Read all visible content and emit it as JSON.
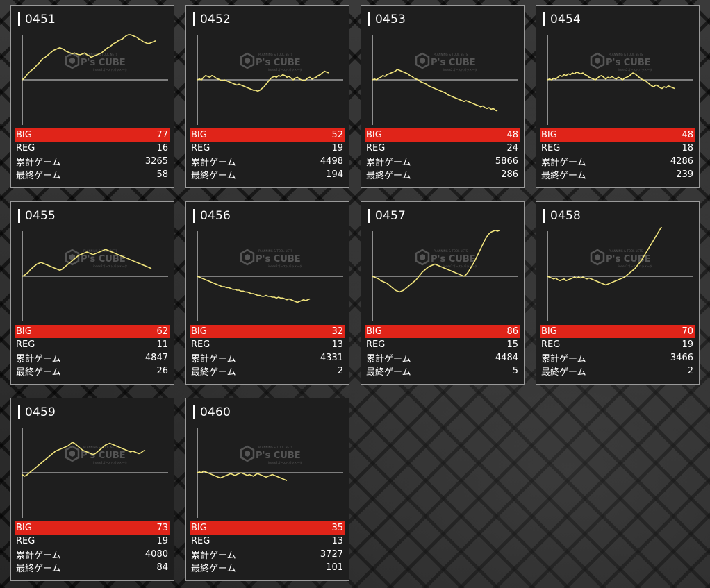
{
  "machines": [
    {
      "id": "0451",
      "big": "77",
      "reg": "16",
      "total": "3265",
      "last": "58",
      "series": [
        0,
        2,
        5,
        8,
        10,
        12,
        14,
        17,
        19,
        22,
        25,
        26,
        28,
        30,
        32,
        34,
        35,
        36,
        37,
        36,
        35,
        33,
        32,
        31,
        30,
        31,
        30,
        29,
        29,
        30,
        31,
        29,
        28,
        26,
        27,
        28,
        29,
        30,
        31,
        33,
        35,
        37,
        38,
        40,
        42,
        43,
        45,
        46,
        47,
        49,
        51,
        52,
        52,
        51,
        50,
        49,
        47,
        46,
        44,
        43,
        42,
        42,
        43,
        44,
        45
      ]
    },
    {
      "id": "0452",
      "big": "52",
      "reg": "19",
      "total": "4498",
      "last": "194",
      "series": [
        0,
        1,
        0,
        3,
        5,
        4,
        3,
        5,
        4,
        2,
        1,
        0,
        -1,
        0,
        -1,
        -2,
        -3,
        -4,
        -5,
        -6,
        -5,
        -6,
        -7,
        -8,
        -9,
        -10,
        -11,
        -12,
        -12,
        -13,
        -12,
        -10,
        -8,
        -5,
        -2,
        1,
        3,
        4,
        3,
        5,
        4,
        6,
        5,
        3,
        4,
        2,
        0,
        2,
        3,
        1,
        0,
        -1,
        0,
        2,
        3,
        1,
        2,
        3,
        5,
        6,
        8,
        10,
        9,
        8
      ]
    },
    {
      "id": "0453",
      "big": "48",
      "reg": "24",
      "total": "5866",
      "last": "286",
      "series": [
        0,
        1,
        0,
        2,
        3,
        5,
        4,
        6,
        7,
        8,
        9,
        10,
        12,
        11,
        10,
        9,
        8,
        7,
        5,
        4,
        2,
        1,
        0,
        -2,
        -3,
        -4,
        -5,
        -7,
        -8,
        -9,
        -10,
        -11,
        -12,
        -13,
        -14,
        -15,
        -17,
        -18,
        -19,
        -20,
        -21,
        -22,
        -23,
        -24,
        -25,
        -24,
        -25,
        -26,
        -27,
        -28,
        -29,
        -30,
        -31,
        -30,
        -32,
        -33,
        -32,
        -34,
        -33,
        -35,
        -36
      ]
    },
    {
      "id": "0454",
      "big": "48",
      "reg": "18",
      "total": "4286",
      "last": "239",
      "series": [
        0,
        1,
        0,
        2,
        1,
        3,
        5,
        4,
        6,
        5,
        7,
        6,
        8,
        7,
        9,
        8,
        7,
        8,
        6,
        5,
        3,
        2,
        1,
        0,
        2,
        4,
        5,
        3,
        1,
        3,
        2,
        4,
        2,
        1,
        3,
        2,
        0,
        2,
        3,
        4,
        6,
        8,
        7,
        5,
        3,
        1,
        0,
        -1,
        -3,
        -5,
        -7,
        -8,
        -6,
        -7,
        -9,
        -10,
        -8,
        -9,
        -7,
        -8,
        -9,
        -10
      ]
    },
    {
      "id": "0455",
      "big": "62",
      "reg": "11",
      "total": "4847",
      "last": "26",
      "series": [
        0,
        1,
        3,
        5,
        8,
        10,
        12,
        14,
        15,
        16,
        15,
        14,
        13,
        12,
        11,
        10,
        9,
        8,
        7,
        8,
        10,
        12,
        14,
        16,
        18,
        20,
        22,
        24,
        25,
        26,
        27,
        28,
        27,
        26,
        25,
        26,
        27,
        28,
        29,
        30,
        31,
        30,
        29,
        28,
        27,
        26,
        25,
        24,
        23,
        22,
        21,
        20,
        19,
        18,
        17,
        16,
        15,
        14,
        13,
        12,
        11,
        10,
        9
      ]
    },
    {
      "id": "0456",
      "big": "32",
      "reg": "13",
      "total": "4331",
      "last": "2",
      "series": [
        0,
        -1,
        -2,
        -3,
        -4,
        -5,
        -6,
        -7,
        -8,
        -9,
        -10,
        -11,
        -12,
        -12,
        -13,
        -13,
        -14,
        -15,
        -15,
        -16,
        -16,
        -17,
        -17,
        -18,
        -18,
        -19,
        -20,
        -20,
        -21,
        -22,
        -22,
        -23,
        -23,
        -22,
        -23,
        -23,
        -24,
        -24,
        -25,
        -24,
        -25,
        -25,
        -26,
        -27,
        -26,
        -27,
        -28,
        -29,
        -30,
        -29,
        -28,
        -27,
        -28,
        -27,
        -26
      ]
    },
    {
      "id": "0457",
      "big": "86",
      "reg": "15",
      "total": "4484",
      "last": "5",
      "series": [
        0,
        -1,
        -2,
        -3,
        -5,
        -6,
        -7,
        -8,
        -10,
        -12,
        -14,
        -16,
        -17,
        -18,
        -17,
        -16,
        -14,
        -12,
        -10,
        -8,
        -6,
        -4,
        -1,
        2,
        5,
        7,
        9,
        11,
        12,
        13,
        14,
        13,
        12,
        11,
        10,
        9,
        8,
        7,
        6,
        5,
        4,
        3,
        2,
        1,
        0,
        2,
        5,
        9,
        13,
        17,
        22,
        27,
        32,
        37,
        42,
        46,
        49,
        51,
        52,
        53,
        52,
        53
      ]
    },
    {
      "id": "0458",
      "big": "70",
      "reg": "19",
      "total": "3466",
      "last": "2",
      "series": [
        0,
        -1,
        -2,
        -3,
        -2,
        -4,
        -5,
        -4,
        -3,
        -5,
        -4,
        -3,
        -2,
        -1,
        -2,
        -1,
        -2,
        -1,
        -2,
        -3,
        -2,
        -3,
        -4,
        -5,
        -6,
        -7,
        -8,
        -9,
        -10,
        -9,
        -8,
        -7,
        -6,
        -5,
        -4,
        -3,
        -2,
        -1,
        1,
        3,
        5,
        7,
        9,
        12,
        15,
        18,
        22,
        26,
        30,
        34,
        38,
        42,
        46,
        50,
        54,
        58,
        60,
        61
      ]
    },
    {
      "id": "0459",
      "big": "73",
      "reg": "19",
      "total": "4080",
      "last": "84",
      "series": [
        -2,
        -4,
        -3,
        -1,
        1,
        3,
        5,
        7,
        9,
        11,
        13,
        15,
        17,
        19,
        21,
        23,
        25,
        26,
        27,
        28,
        29,
        30,
        31,
        33,
        35,
        34,
        32,
        30,
        28,
        26,
        25,
        24,
        23,
        22,
        21,
        22,
        24,
        26,
        28,
        30,
        32,
        33,
        34,
        33,
        32,
        31,
        30,
        29,
        28,
        27,
        26,
        25,
        24,
        25,
        24,
        23,
        22,
        23,
        25,
        26
      ]
    },
    {
      "id": "0460",
      "big": "35",
      "reg": "13",
      "total": "3727",
      "last": "101",
      "series": [
        0,
        1,
        0,
        2,
        1,
        0,
        -1,
        -2,
        -3,
        -4,
        -5,
        -6,
        -5,
        -4,
        -3,
        -2,
        -1,
        -2,
        -3,
        -2,
        -1,
        0,
        -1,
        -2,
        -3,
        -2,
        -3,
        -4,
        -2,
        -1,
        -2,
        -3,
        -4,
        -5,
        -4,
        -3,
        -2,
        -3,
        -4,
        -5,
        -6,
        -7,
        -8,
        -9
      ]
    }
  ],
  "labels": {
    "big": "BIG",
    "reg": "REG",
    "total": "累計ゲーム",
    "last": "最終ゲーム"
  },
  "watermark": {
    "brand": "P's CUBE",
    "small_top": "PLANNING & TOOL NETS",
    "small_bottom": "index2ゴーストパラメータ"
  },
  "colors": {
    "line": "#f2e57d",
    "big_row": "#e02419",
    "card_bg": "#1e1e1e",
    "axis": "#ffffff"
  }
}
